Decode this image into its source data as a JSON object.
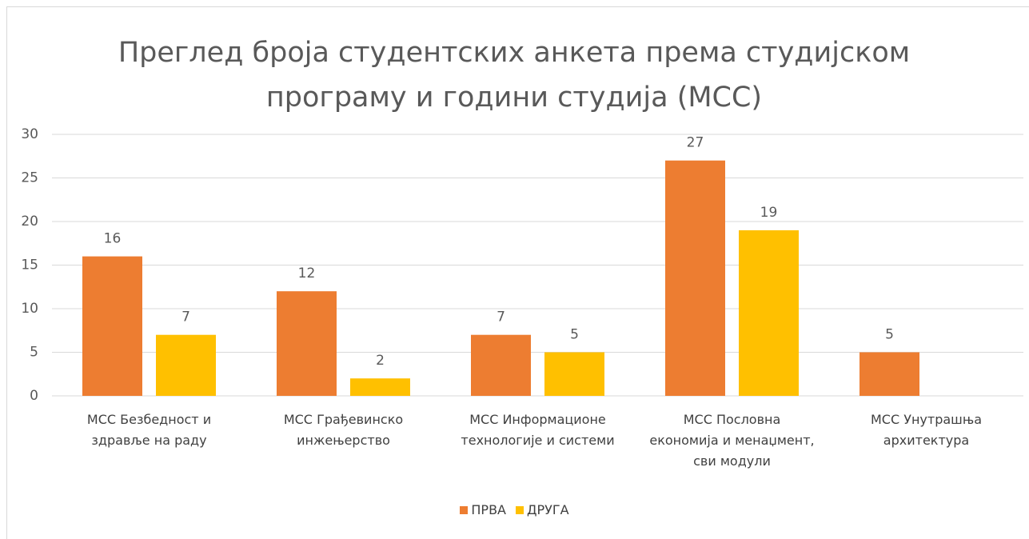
{
  "chart_data": {
    "type": "bar",
    "title": "Преглед броја студентских анкета према студијском програму и години студија (МСС)",
    "categories": [
      "МСС Безбедност и здравље на раду",
      "МСС Грађевинско инжењерство",
      "МСС Информационе технологије и системи",
      "МСС Пословна економија и менаџмент, сви модули",
      "МСС Унутрашња архитектура"
    ],
    "series": [
      {
        "name": "ПРВА",
        "color": "#ed7d31",
        "values": [
          16,
          12,
          7,
          27,
          5
        ]
      },
      {
        "name": "ДРУГА",
        "color": "#ffc000",
        "values": [
          7,
          2,
          5,
          19,
          null
        ]
      }
    ],
    "ylim": [
      0,
      30
    ],
    "yticks": [
      0,
      5,
      10,
      15,
      20,
      25,
      30
    ],
    "grid": true,
    "legend": "bottom"
  }
}
